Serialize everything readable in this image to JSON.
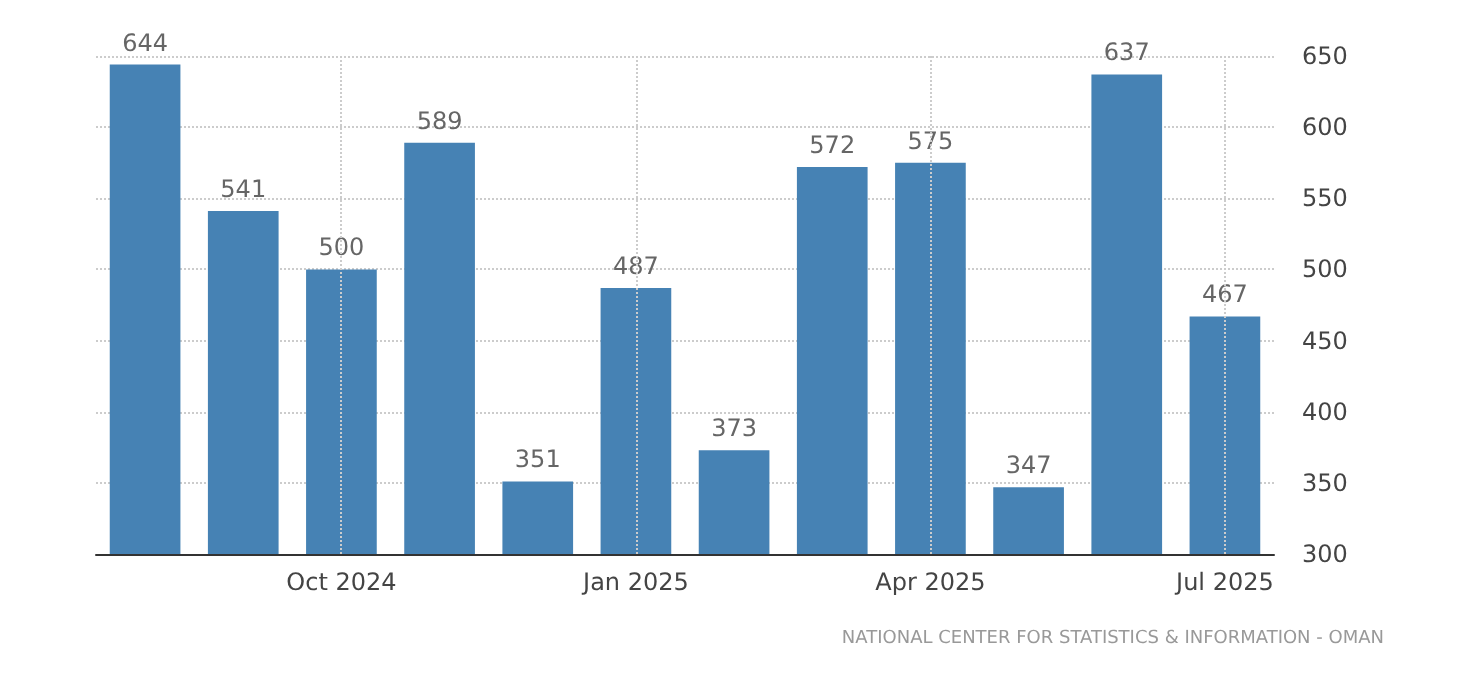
{
  "chart_data": {
    "type": "bar",
    "categories": [
      null,
      null,
      "Oct 2024",
      null,
      null,
      "Jan 2025",
      null,
      null,
      "Apr 2025",
      null,
      null,
      "Jul 2025"
    ],
    "values": [
      644,
      541,
      500,
      589,
      351,
      487,
      373,
      572,
      575,
      347,
      637,
      467
    ],
    "color": "#4682b4",
    "ylim": [
      300,
      650
    ],
    "yticks": [
      300,
      350,
      400,
      450,
      500,
      550,
      600,
      650
    ],
    "grid": true,
    "data_labels": true,
    "annotations": [
      "NATIONAL CENTER FOR STATISTICS & INFORMATION - OMAN"
    ]
  }
}
